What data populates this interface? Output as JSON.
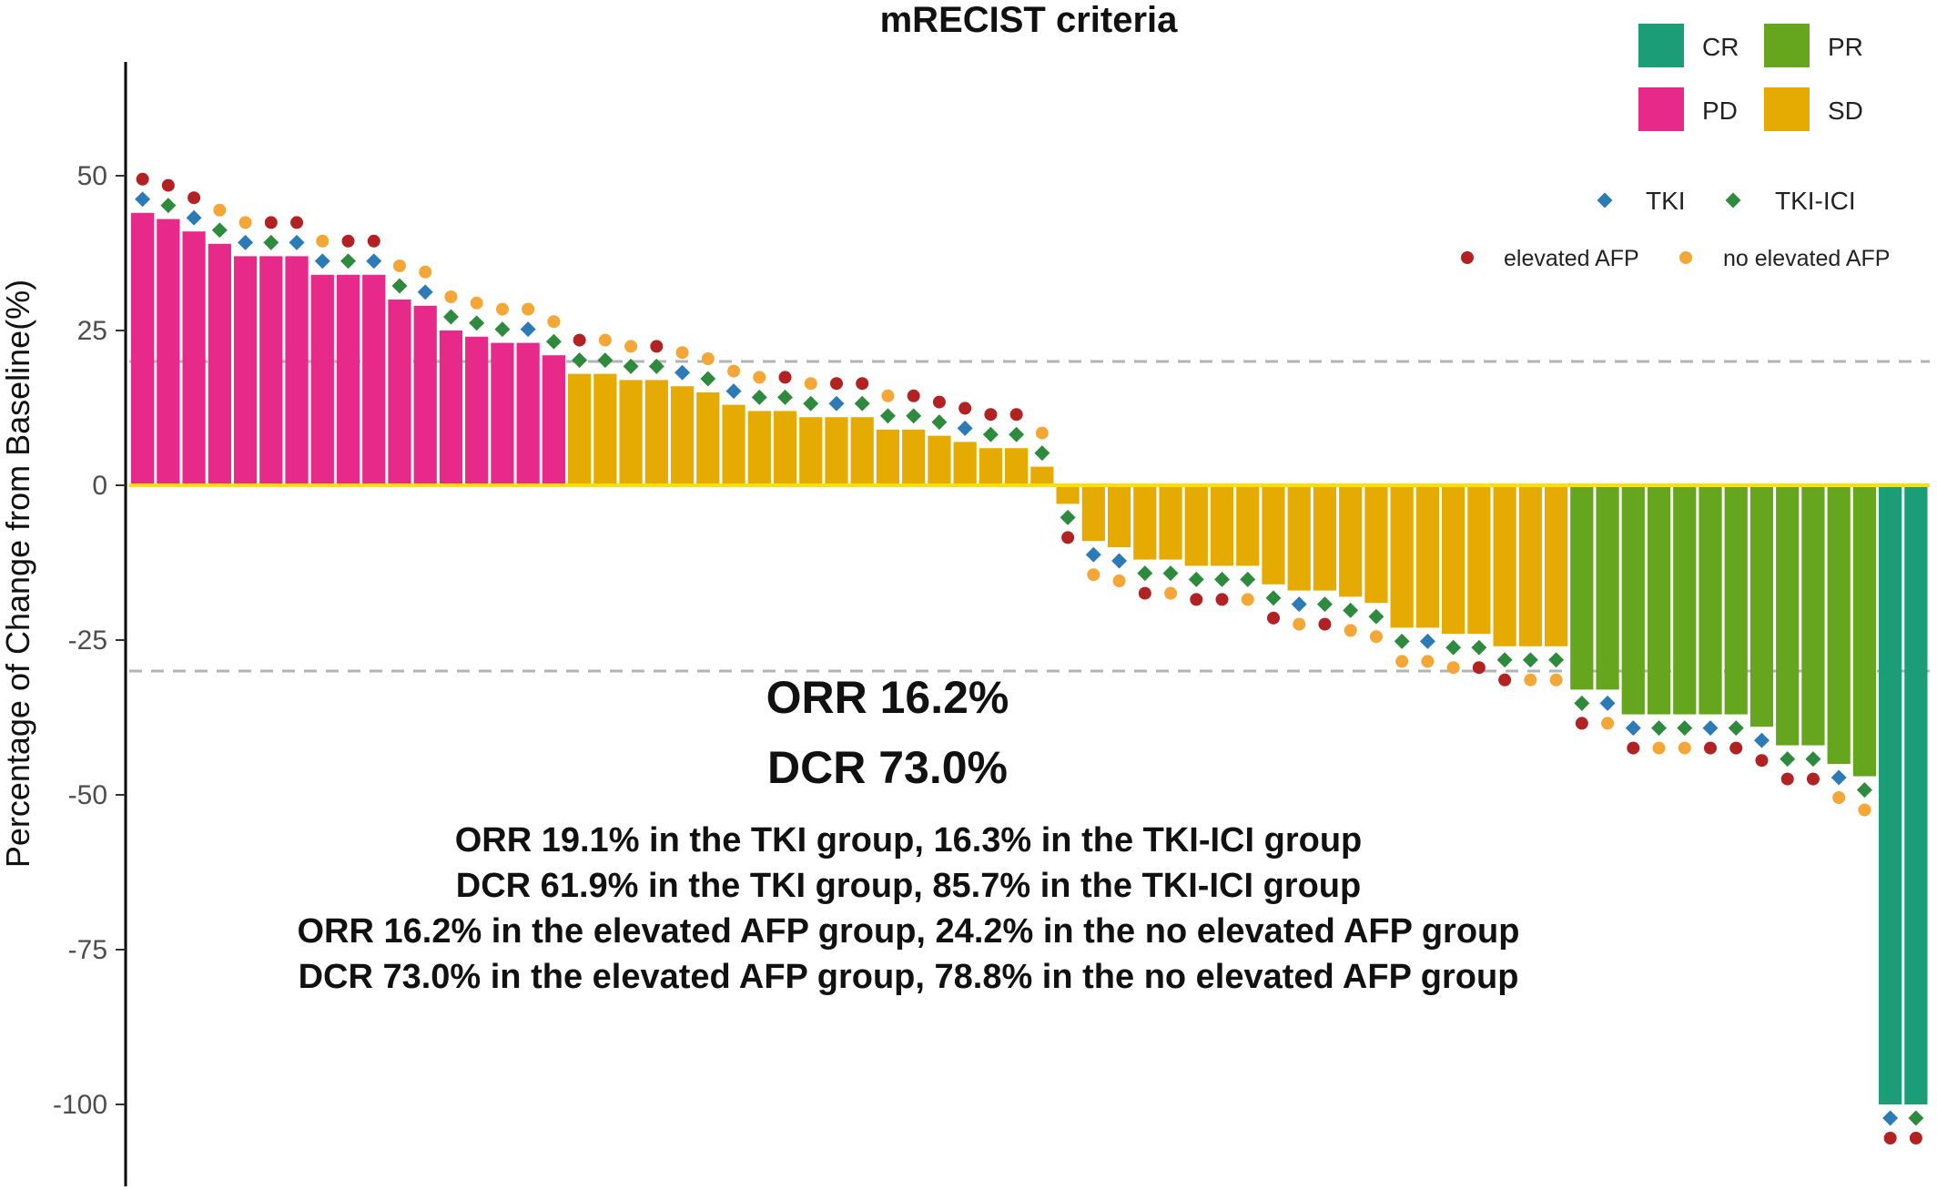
{
  "chart_data": {
    "type": "bar",
    "title": "mRECIST criteria",
    "xlabel": "",
    "ylabel": "Percentage of Change from Baseline(%)",
    "ylim": [
      -110,
      68
    ],
    "yticks": [
      50,
      25,
      0,
      -25,
      -50,
      -75,
      -100
    ],
    "ytick_labels": [
      "50",
      "25",
      "0",
      "-25",
      "-50",
      "-75",
      "-100"
    ],
    "reference_lines": [
      20,
      -30
    ],
    "grid": false,
    "legend_position": "top-right",
    "response_legend": [
      {
        "label": "CR",
        "color": "#1b9e77"
      },
      {
        "label": "PR",
        "color": "#66a61e"
      },
      {
        "label": "PD",
        "color": "#e7298a"
      },
      {
        "label": "SD",
        "color": "#e6ab02"
      }
    ],
    "treatment_legend": [
      {
        "label": "TKI",
        "color": "#2c7bb6"
      },
      {
        "label": "TKI-ICI",
        "color": "#2e8b3d"
      }
    ],
    "afp_legend": [
      {
        "label": "elevated AFP",
        "color": "#b22222"
      },
      {
        "label": "no elevated AFP",
        "color": "#f4a736"
      }
    ],
    "values": [
      44,
      43,
      41,
      39,
      37,
      37,
      37,
      34,
      34,
      34,
      30,
      29,
      25,
      24,
      23,
      23,
      21,
      18,
      18,
      17,
      17,
      16,
      15,
      13,
      12,
      12,
      11,
      11,
      11,
      9,
      9,
      8,
      7,
      6,
      6,
      3,
      -3,
      -9,
      -10,
      -12,
      -12,
      -13,
      -13,
      -13,
      -16,
      -17,
      -17,
      -18,
      -19,
      -23,
      -23,
      -24,
      -24,
      -26,
      -26,
      -26,
      -33,
      -33,
      -37,
      -37,
      -37,
      -37,
      -37,
      -39,
      -42,
      -42,
      -45,
      -47,
      -100,
      -100
    ],
    "response": [
      "PD",
      "PD",
      "PD",
      "PD",
      "PD",
      "PD",
      "PD",
      "PD",
      "PD",
      "PD",
      "PD",
      "PD",
      "PD",
      "PD",
      "PD",
      "PD",
      "PD",
      "SD",
      "SD",
      "SD",
      "SD",
      "SD",
      "SD",
      "SD",
      "SD",
      "SD",
      "SD",
      "SD",
      "SD",
      "SD",
      "SD",
      "SD",
      "SD",
      "SD",
      "SD",
      "SD",
      "SD",
      "SD",
      "SD",
      "SD",
      "SD",
      "SD",
      "SD",
      "SD",
      "SD",
      "SD",
      "SD",
      "SD",
      "SD",
      "SD",
      "SD",
      "SD",
      "SD",
      "SD",
      "SD",
      "SD",
      "PR",
      "PR",
      "PR",
      "PR",
      "PR",
      "PR",
      "PR",
      "PR",
      "PR",
      "PR",
      "PR",
      "PR",
      "CR",
      "CR"
    ],
    "treatment": [
      "TKI",
      "TKI-ICI",
      "TKI",
      "TKI-ICI",
      "TKI",
      "TKI-ICI",
      "TKI",
      "TKI",
      "TKI-ICI",
      "TKI",
      "TKI-ICI",
      "TKI",
      "TKI-ICI",
      "TKI-ICI",
      "TKI-ICI",
      "TKI",
      "TKI-ICI",
      "TKI-ICI",
      "TKI-ICI",
      "TKI-ICI",
      "TKI-ICI",
      "TKI",
      "TKI-ICI",
      "TKI",
      "TKI-ICI",
      "TKI-ICI",
      "TKI-ICI",
      "TKI",
      "TKI-ICI",
      "TKI-ICI",
      "TKI-ICI",
      "TKI-ICI",
      "TKI",
      "TKI-ICI",
      "TKI-ICI",
      "TKI-ICI",
      "TKI-ICI",
      "TKI",
      "TKI",
      "TKI-ICI",
      "TKI-ICI",
      "TKI-ICI",
      "TKI-ICI",
      "TKI-ICI",
      "TKI-ICI",
      "TKI",
      "TKI-ICI",
      "TKI-ICI",
      "TKI-ICI",
      "TKI-ICI",
      "TKI",
      "TKI-ICI",
      "TKI-ICI",
      "TKI-ICI",
      "TKI-ICI",
      "TKI-ICI",
      "TKI-ICI",
      "TKI",
      "TKI",
      "TKI-ICI",
      "TKI-ICI",
      "TKI",
      "TKI-ICI",
      "TKI",
      "TKI-ICI",
      "TKI-ICI",
      "TKI",
      "TKI-ICI",
      "TKI",
      "TKI-ICI"
    ],
    "afp": [
      "elevated AFP",
      "elevated AFP",
      "elevated AFP",
      "no elevated AFP",
      "no elevated AFP",
      "elevated AFP",
      "elevated AFP",
      "no elevated AFP",
      "elevated AFP",
      "elevated AFP",
      "no elevated AFP",
      "no elevated AFP",
      "no elevated AFP",
      "no elevated AFP",
      "no elevated AFP",
      "no elevated AFP",
      "no elevated AFP",
      "elevated AFP",
      "no elevated AFP",
      "no elevated AFP",
      "elevated AFP",
      "no elevated AFP",
      "no elevated AFP",
      "no elevated AFP",
      "no elevated AFP",
      "elevated AFP",
      "no elevated AFP",
      "elevated AFP",
      "elevated AFP",
      "no elevated AFP",
      "elevated AFP",
      "elevated AFP",
      "elevated AFP",
      "elevated AFP",
      "elevated AFP",
      "no elevated AFP",
      "elevated AFP",
      "no elevated AFP",
      "no elevated AFP",
      "elevated AFP",
      "no elevated AFP",
      "elevated AFP",
      "elevated AFP",
      "no elevated AFP",
      "elevated AFP",
      "no elevated AFP",
      "elevated AFP",
      "no elevated AFP",
      "no elevated AFP",
      "no elevated AFP",
      "no elevated AFP",
      "no elevated AFP",
      "elevated AFP",
      "elevated AFP",
      "no elevated AFP",
      "no elevated AFP",
      "elevated AFP",
      "no elevated AFP",
      "elevated AFP",
      "no elevated AFP",
      "no elevated AFP",
      "elevated AFP",
      "elevated AFP",
      "elevated AFP",
      "elevated AFP",
      "elevated AFP",
      "no elevated AFP",
      "no elevated AFP",
      "elevated AFP",
      "elevated AFP"
    ],
    "annotations": {
      "orr": "ORR 16.2%",
      "dcr": "DCR 73.0%",
      "lines": [
        "ORR 19.1% in the TKI group, 16.3% in the TKI-ICI group",
        "DCR 61.9% in the TKI group, 85.7% in the TKI-ICI group",
        "ORR 16.2% in the elevated AFP group, 24.2% in the no elevated AFP group",
        "DCR 73.0% in the elevated AFP group, 78.8% in the no elevated AFP group"
      ]
    }
  }
}
